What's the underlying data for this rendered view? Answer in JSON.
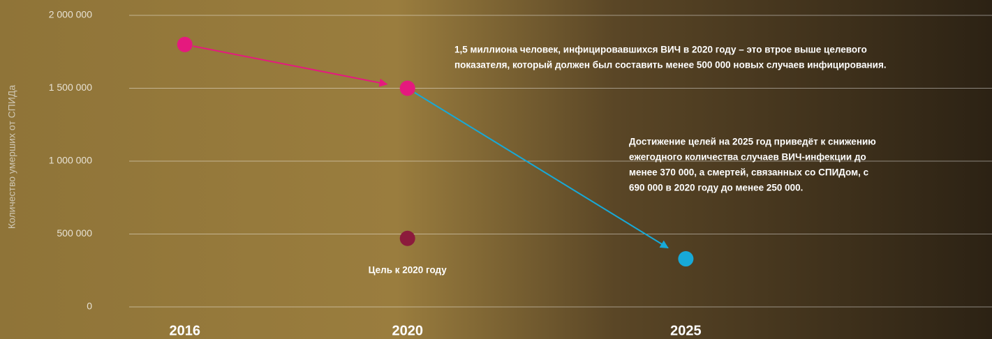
{
  "chart_data": {
    "type": "scatter",
    "y_axis_label": "Количество умерших от СПИДа",
    "xlim": [
      2015,
      2030.5
    ],
    "xticks": [
      2016,
      2020,
      2025
    ],
    "ylim": [
      0,
      2000000
    ],
    "yticks": [
      0,
      {
        "value": 500000,
        "label": "500 000"
      },
      {
        "value": 1000000,
        "label": "1 000 000"
      },
      {
        "value": 1500000,
        "label": "1 500 000"
      },
      {
        "value": 2000000,
        "label": "2 000 000"
      }
    ],
    "grid": true,
    "series": [
      {
        "x": [
          2016,
          2020,
          2025
        ],
        "values": [
          1800000,
          1500000,
          330000
        ],
        "colors": [
          "#e5197e",
          "#e5197e",
          "#17a9d8"
        ],
        "connect": true
      },
      {
        "x": [
          2020
        ],
        "values": [
          470000
        ],
        "colors": [
          "#8c1b3c"
        ],
        "connect": false
      }
    ],
    "annotations": [
      [
        "1,5 миллиона человек, инфицировавшихся ВИЧ в 2020 году – это втрое выше целевого",
        "показателя, который должен был составить менее 500 000 новых случаев инфицирования."
      ],
      [
        "Достижение целей на 2025 год приведёт к снижению",
        "ежегодного количества случаев ВИЧ-инфекции до",
        "менее 370 000, а смертей, связанных со СПИДом, с",
        "690 000 в 2020 году до менее 250 000."
      ],
      [
        "Цель к 2020 году"
      ]
    ]
  }
}
